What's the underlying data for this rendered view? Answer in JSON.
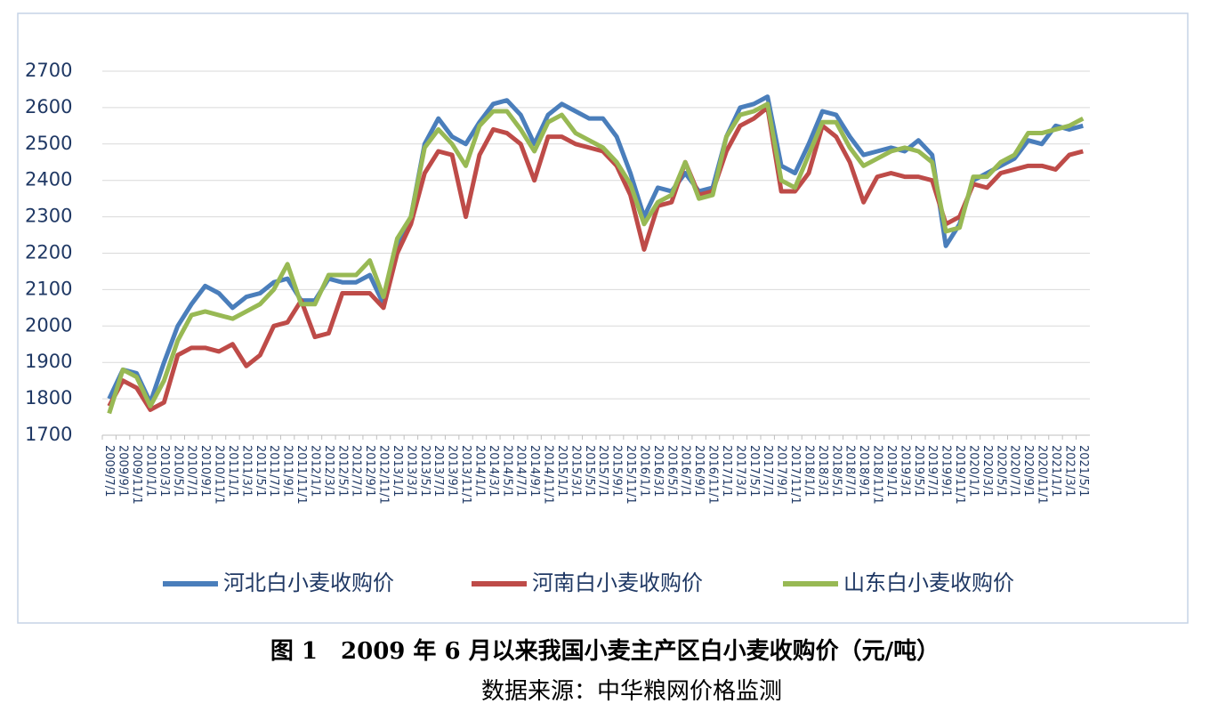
{
  "chart_data": {
    "type": "line",
    "caption": "图 1　2009 年 6 月以来我国小麦主产区白小麦收购价（元/吨）",
    "source": "数据来源：中华粮网价格监测",
    "categories": [
      "2009/7/1",
      "2009/9/1",
      "2009/11/1",
      "2010/1/1",
      "2010/3/1",
      "2010/5/1",
      "2010/7/1",
      "2010/9/1",
      "2010/11/1",
      "2011/1/1",
      "2011/3/1",
      "2011/5/1",
      "2011/7/1",
      "2011/9/1",
      "2011/11/1",
      "2012/1/1",
      "2012/3/1",
      "2012/5/1",
      "2012/7/1",
      "2012/9/1",
      "2012/11/1",
      "2013/1/1",
      "2013/3/1",
      "2013/5/1",
      "2013/7/1",
      "2013/9/1",
      "2013/11/1",
      "2014/1/1",
      "2014/3/1",
      "2014/5/1",
      "2014/7/1",
      "2014/9/1",
      "2014/11/1",
      "2015/1/1",
      "2015/3/1",
      "2015/5/1",
      "2015/7/1",
      "2015/9/1",
      "2015/11/1",
      "2016/1/1",
      "2016/3/1",
      "2016/5/1",
      "2016/7/1",
      "2016/9/1",
      "2016/11/1",
      "2017/1/1",
      "2017/3/1",
      "2017/5/1",
      "2017/7/1",
      "2017/9/1",
      "2017/11/1",
      "2018/1/1",
      "2018/3/1",
      "2018/5/1",
      "2018/7/1",
      "2018/9/1",
      "2018/11/1",
      "2019/1/1",
      "2019/3/1",
      "2019/5/1",
      "2019/7/1",
      "2019/9/1",
      "2019/11/1",
      "2020/1/1",
      "2020/3/1",
      "2020/5/1",
      "2020/7/1",
      "2020/9/1",
      "2020/11/1",
      "2021/1/1",
      "2021/3/1",
      "2021/5/1"
    ],
    "series": [
      {
        "name": "河北白小麦收购价",
        "color": "#4a7ebb",
        "values": [
          1800,
          1880,
          1870,
          1790,
          1900,
          2000,
          2060,
          2110,
          2090,
          2050,
          2080,
          2090,
          2120,
          2130,
          2070,
          2070,
          2130,
          2120,
          2120,
          2140,
          2060,
          2220,
          2300,
          2500,
          2570,
          2520,
          2500,
          2560,
          2610,
          2620,
          2580,
          2500,
          2580,
          2610,
          2590,
          2570,
          2570,
          2520,
          2420,
          2300,
          2380,
          2370,
          2420,
          2370,
          2380,
          2520,
          2600,
          2610,
          2630,
          2440,
          2420,
          2500,
          2590,
          2580,
          2520,
          2470,
          2480,
          2490,
          2480,
          2510,
          2470,
          2220,
          2280,
          2400,
          2420,
          2440,
          2460,
          2510,
          2500,
          2550,
          2540,
          2550
        ]
      },
      {
        "name": "河南白小麦收购价",
        "color": "#be4b48",
        "values": [
          1780,
          1850,
          1830,
          1770,
          1790,
          1920,
          1940,
          1940,
          1930,
          1950,
          1890,
          1920,
          2000,
          2010,
          2070,
          1970,
          1980,
          2090,
          2090,
          2090,
          2050,
          2200,
          2280,
          2420,
          2480,
          2470,
          2300,
          2470,
          2540,
          2530,
          2500,
          2400,
          2520,
          2520,
          2500,
          2490,
          2480,
          2440,
          2360,
          2210,
          2330,
          2340,
          2450,
          2360,
          2370,
          2480,
          2550,
          2570,
          2600,
          2370,
          2370,
          2420,
          2550,
          2520,
          2450,
          2340,
          2410,
          2420,
          2410,
          2410,
          2400,
          2280,
          2300,
          2390,
          2380,
          2420,
          2430,
          2440,
          2440,
          2430,
          2470,
          2480
        ]
      },
      {
        "name": "山东白小麦收购价",
        "color": "#98b954",
        "values": [
          1760,
          1880,
          1860,
          1780,
          1850,
          1960,
          2030,
          2040,
          2030,
          2020,
          2040,
          2060,
          2100,
          2170,
          2060,
          2060,
          2140,
          2140,
          2140,
          2180,
          2080,
          2240,
          2300,
          2490,
          2540,
          2500,
          2440,
          2550,
          2590,
          2590,
          2540,
          2480,
          2560,
          2580,
          2530,
          2510,
          2490,
          2450,
          2390,
          2280,
          2340,
          2360,
          2450,
          2350,
          2360,
          2520,
          2580,
          2590,
          2610,
          2400,
          2380,
          2470,
          2560,
          2560,
          2490,
          2440,
          2460,
          2480,
          2490,
          2480,
          2450,
          2260,
          2270,
          2410,
          2410,
          2450,
          2470,
          2530,
          2530,
          2540,
          2550,
          2570
        ]
      }
    ],
    "ylim": [
      1700,
      2700
    ],
    "yticks": [
      1700,
      1800,
      1900,
      2000,
      2100,
      2200,
      2300,
      2400,
      2500,
      2600,
      2700
    ],
    "grid": true
  }
}
